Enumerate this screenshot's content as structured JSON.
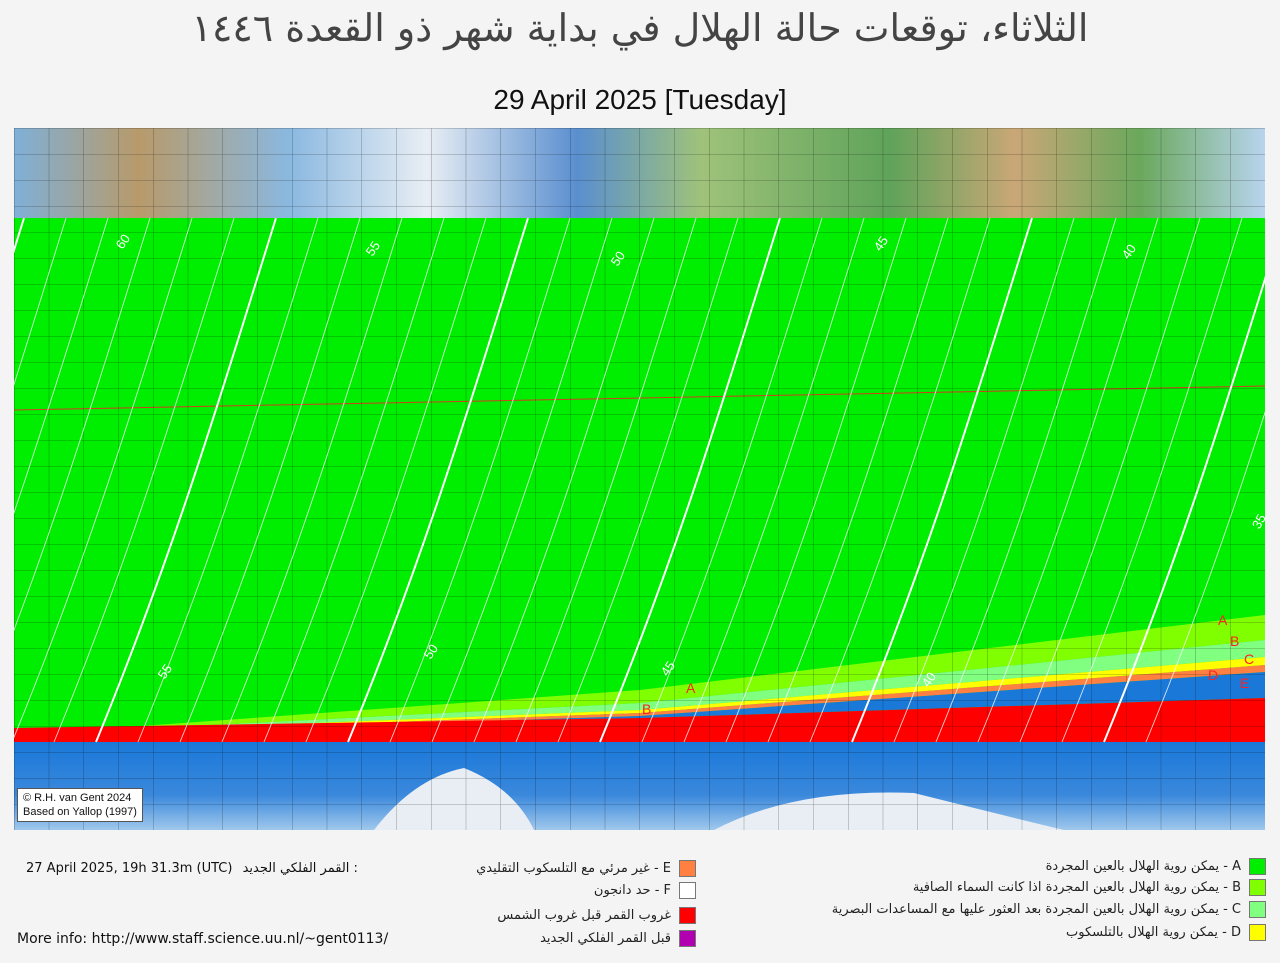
{
  "title": "الثلاثاء، توقعات حالة الهلال في بداية شهر ذو القعدة ١٤٤٦",
  "subtitle": "29 April 2025 [Tuesday]",
  "credit": {
    "line1": "© R.H. van Gent 2024",
    "line2": "Based on Yallop (1997)"
  },
  "map": {
    "contour_labels": [
      "60",
      "55",
      "50",
      "45",
      "40",
      "35",
      "55",
      "50",
      "45",
      "40"
    ],
    "zone_labels": [
      "A",
      "B",
      "A",
      "B",
      "C",
      "D",
      "E"
    ],
    "colors": {
      "A": "#00ee00",
      "B": "#80ff00",
      "C": "#80ff80",
      "D": "#ffff00",
      "E": "#ff8040",
      "F": "#ffffff",
      "moonset_before_sunset": "#ff0000",
      "before_new_moon": "#b000b0"
    }
  },
  "new_moon": {
    "label": "القمر الفلكي الجديد :",
    "value": "27 April 2025, 19h 31.3m (UTC)"
  },
  "more_info": "More info: http://www.staff.science.uu.nl/~gent0113/",
  "legend_right": [
    {
      "text": "A - يمكن روية الهلال بالعين المجردة",
      "color": "#00ee00"
    },
    {
      "text": "B - يمكن روية الهلال بالعين المجردة اذا كانت السماء الصافية",
      "color": "#80ff00"
    },
    {
      "text": "C - يمكن روية الهلال بالعين المجردة بعد العثور عليها مع المساعدات البصرية",
      "color": "#80ff80"
    },
    {
      "text": "D - يمكن روية الهلال بالتلسكوب",
      "color": "#ffff00"
    }
  ],
  "legend_mid": [
    {
      "text": "E - غير مرئي مع التلسكوب التقليدي",
      "color": "#ff8040"
    },
    {
      "text": "F - حد دانجون",
      "color": "#ffffff"
    },
    {
      "text": "غروب القمر قبل غروب الشمس",
      "color": "#ff0000"
    },
    {
      "text": "قبل القمر  الفلكي الجديد",
      "color": "#b000b0"
    }
  ]
}
